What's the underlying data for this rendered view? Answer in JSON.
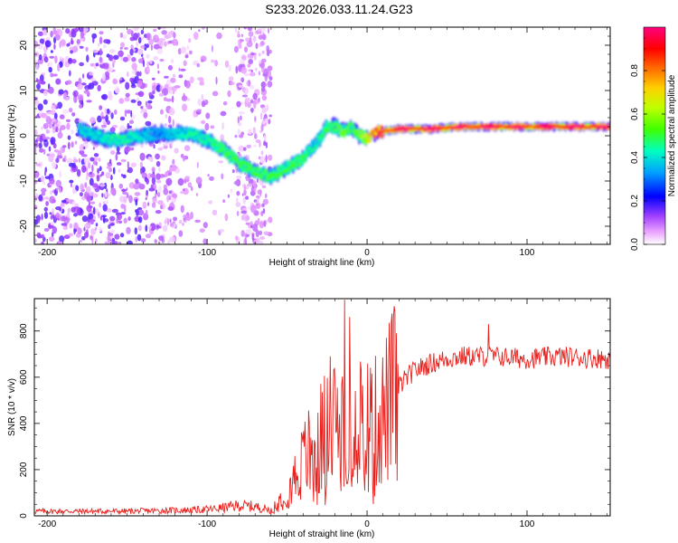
{
  "title": "S233.2026.033.11.24.G23",
  "chart_data": [
    {
      "type": "heatmap",
      "name": "spectrogram",
      "xlabel": "Height of straight line (km)",
      "ylabel": "Frequency (Hz)",
      "xlim": [
        -208,
        152
      ],
      "ylim": [
        -24,
        24
      ],
      "xticks": [
        -200,
        -100,
        0,
        100
      ],
      "yticks": [
        -20,
        -10,
        0,
        10,
        20
      ],
      "colorbar": {
        "label": "Normalized spectral amplitude",
        "range": [
          0,
          1
        ],
        "ticks": [
          "0.0",
          "0.2",
          "0.4",
          "0.6",
          "0.8"
        ],
        "tick_values": [
          0,
          0.2,
          0.4,
          0.6,
          0.8
        ],
        "colors": [
          "#ffffff",
          "#e060ff",
          "#8000ff",
          "#0000ff",
          "#00c0ff",
          "#00ff80",
          "#c0ff00",
          "#ffd000",
          "#ff6000",
          "#ff0000",
          "#ff0070"
        ]
      },
      "ridge": {
        "x": [
          -180,
          -170,
          -160,
          -150,
          -140,
          -130,
          -120,
          -110,
          -100,
          -90,
          -80,
          -70,
          -60,
          -55,
          -50,
          -45,
          -40,
          -35,
          -30,
          -25,
          -20,
          -15,
          -10,
          -5,
          0,
          5,
          10,
          20,
          40,
          60,
          80,
          100,
          120,
          152
        ],
        "freq": [
          1.5,
          0,
          -1,
          -0.5,
          0,
          0.5,
          0.5,
          0.5,
          -1,
          -3,
          -6,
          -8,
          -9,
          -8,
          -7,
          -6,
          -5,
          -3,
          -1,
          2,
          2,
          1,
          2,
          0,
          -0.5,
          0.5,
          1,
          1.5,
          1.5,
          2,
          2,
          2,
          2,
          2
        ],
        "amplitude": [
          0.35,
          0.35,
          0.4,
          0.4,
          0.35,
          0.3,
          0.35,
          0.4,
          0.4,
          0.45,
          0.45,
          0.45,
          0.45,
          0.45,
          0.45,
          0.45,
          0.45,
          0.4,
          0.4,
          0.45,
          0.45,
          0.5,
          0.45,
          0.5,
          0.6,
          0.8,
          0.9,
          0.9,
          0.95,
          0.9,
          0.95,
          0.9,
          0.95,
          0.9
        ]
      },
      "noise_region_x": [
        -208,
        -60
      ]
    },
    {
      "type": "line",
      "name": "snr",
      "xlabel": "Height of straight line (km)",
      "ylabel": "SNR (10 * v/v)",
      "xlim": [
        -208,
        152
      ],
      "ylim": [
        0,
        940
      ],
      "xticks": [
        -200,
        -100,
        0,
        100
      ],
      "yticks": [
        0,
        200,
        400,
        600,
        800
      ],
      "color": "#e8201c",
      "envelope_x": [
        -208,
        -150,
        -110,
        -95,
        -80,
        -70,
        -60,
        -52,
        -45,
        -38,
        -30,
        -22,
        -15,
        -10,
        -5,
        0,
        5,
        10,
        15,
        20,
        25,
        30,
        40,
        50,
        60,
        80,
        100,
        120,
        152
      ],
      "envelope_y": [
        20,
        20,
        25,
        30,
        45,
        40,
        25,
        90,
        170,
        260,
        340,
        380,
        420,
        430,
        450,
        400,
        400,
        430,
        510,
        560,
        600,
        630,
        660,
        680,
        690,
        690,
        680,
        690,
        680
      ],
      "spikes": [
        {
          "x": -14,
          "y": 935
        },
        {
          "x": -11,
          "y": 860
        },
        {
          "x": 76,
          "y": 830
        },
        {
          "x": -23,
          "y": 690
        },
        {
          "x": -30,
          "y": 100
        }
      ]
    }
  ]
}
